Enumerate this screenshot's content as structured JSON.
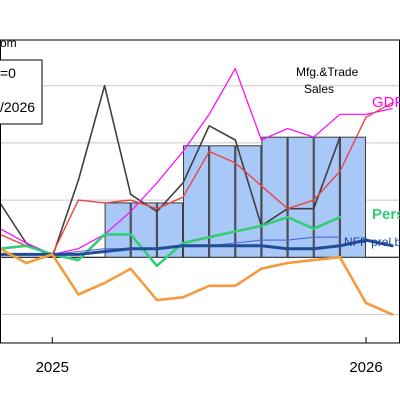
{
  "header": {
    "source_fragment": "om",
    "legend_fragment_1": "=0",
    "legend_fragment_2": "/2026"
  },
  "chart_data": {
    "type": "line",
    "title": "",
    "xlabel": "",
    "ylabel": "",
    "x_tick_labels": [
      "2025",
      "2026"
    ],
    "x_tick_positions": [
      0,
      12
    ],
    "xlim": [
      -2,
      13.3
    ],
    "ylim": [
      97,
      107.6
    ],
    "y_gridlines": [
      98,
      100,
      102,
      104,
      106
    ],
    "y_baseline": 100,
    "grid": true,
    "bars": {
      "name": "",
      "color": "#a8c8f8",
      "x": [
        2.5,
        3.5,
        4.5,
        5.5,
        6.5,
        7.5,
        8.5,
        9.5,
        10.5,
        11.5
      ],
      "values": [
        101.9,
        101.9,
        101.9,
        103.9,
        103.9,
        103.9,
        104.2,
        104.2,
        104.2,
        104.2
      ]
    },
    "series": [
      {
        "name": "Mfg.&Trade Sales",
        "color": "#404040",
        "width": 1.6,
        "x": [
          -2,
          -1,
          0,
          1,
          2,
          3,
          4,
          5,
          6,
          7,
          8,
          9,
          10,
          11
        ],
        "values": [
          101.9,
          100.5,
          100.0,
          102.7,
          106.0,
          102.2,
          101.6,
          102.6,
          104.6,
          104.1,
          101.1,
          101.7,
          101.7,
          104.2
        ]
      },
      {
        "name": "GDP",
        "color": "#ff00ff",
        "width": 1.2,
        "x": [
          -2,
          -1,
          0,
          1,
          2,
          3,
          4,
          5,
          6,
          7,
          8,
          9,
          10,
          11,
          12,
          13
        ],
        "values": [
          101.0,
          100.5,
          100.1,
          100.3,
          100.8,
          101.6,
          102.6,
          103.7,
          105.0,
          106.6,
          104.1,
          104.5,
          104.2,
          105.0,
          105.0,
          105.2
        ]
      },
      {
        "name": "",
        "color": "#ee4444",
        "width": 1.4,
        "x": [
          -2,
          -1,
          0,
          1,
          2,
          3,
          4,
          5,
          6,
          7,
          8,
          9,
          10,
          11,
          12,
          13
        ],
        "values": [
          100.8,
          100.4,
          100.1,
          102.0,
          101.9,
          102.0,
          101.7,
          102.1,
          103.7,
          103.3,
          102.5,
          101.7,
          102.0,
          103.0,
          104.9,
          105.4
        ]
      },
      {
        "name": "Pers",
        "color": "#33cc77",
        "width": 2.6,
        "x": [
          -2,
          -1,
          0,
          1,
          2,
          3,
          4,
          5,
          6,
          7,
          8,
          9,
          10,
          11
        ],
        "values": [
          100.3,
          100.4,
          100.1,
          99.9,
          100.8,
          100.8,
          99.7,
          100.5,
          100.7,
          100.9,
          101.1,
          101.4,
          101.0,
          101.4
        ]
      },
      {
        "name": "NFP prel b",
        "color": "#5566dd",
        "width": 1.1,
        "x": [
          -2,
          -1,
          0,
          1,
          2,
          3,
          4,
          5,
          6,
          7,
          8,
          9,
          10,
          11
        ],
        "values": [
          100.1,
          100.1,
          100.1,
          100.2,
          100.3,
          100.3,
          100.3,
          100.4,
          100.4,
          100.5,
          100.6,
          100.6,
          100.7,
          100.7
        ]
      },
      {
        "name": "",
        "color": "#1f4e96",
        "width": 3.0,
        "x": [
          -2,
          -1,
          0,
          1,
          2,
          3,
          4,
          5,
          6,
          7,
          8,
          9,
          10,
          11,
          12,
          13
        ],
        "values": [
          100.1,
          100.1,
          100.1,
          100.1,
          100.2,
          100.3,
          100.3,
          100.4,
          100.4,
          100.4,
          100.4,
          100.3,
          100.3,
          100.4,
          100.6,
          100.4
        ]
      },
      {
        "name": "",
        "color": "#f49b3d",
        "width": 2.6,
        "x": [
          -2,
          -1,
          0,
          1,
          2,
          3,
          4,
          5,
          6,
          7,
          8,
          9,
          10,
          11,
          12,
          13
        ],
        "values": [
          100.3,
          99.8,
          100.1,
          98.7,
          99.1,
          99.6,
          98.5,
          98.6,
          99.0,
          99.0,
          99.6,
          99.8,
          99.9,
          100.0,
          98.4,
          98.0
        ]
      }
    ]
  }
}
